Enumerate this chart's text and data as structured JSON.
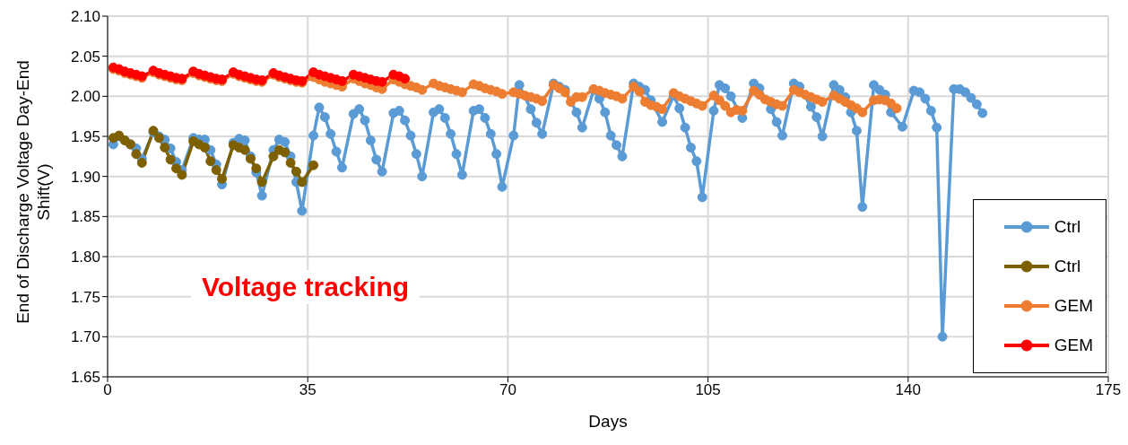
{
  "chart_data": {
    "type": "line",
    "xlabel": "Days",
    "ylabel": "End of Discharge Voltage Day-End Shift(V)",
    "annotations": [
      "Voltage tracking"
    ],
    "xlim": [
      0,
      175
    ],
    "xticks": [
      0,
      35,
      70,
      105,
      140,
      175
    ],
    "ylim": [
      1.65,
      2.1
    ],
    "yticks": [
      {
        "value": 1.65,
        "label": "1.65"
      },
      {
        "value": 1.7,
        "label": "1.70"
      },
      {
        "value": 1.75,
        "label": "1.75"
      },
      {
        "value": 1.8,
        "label": "1.80"
      },
      {
        "value": 1.85,
        "label": "1.85"
      },
      {
        "value": 1.9,
        "label": "1.90"
      },
      {
        "value": 1.95,
        "label": "1.95"
      },
      {
        "value": 2.0,
        "label": "2.00"
      },
      {
        "value": 2.05,
        "label": "2.05"
      },
      {
        "value": 2.1,
        "label": "2.10"
      }
    ],
    "grid": true,
    "legend": "bottom right",
    "marker": "circle",
    "line_style": "solid",
    "series": [
      {
        "name": "Ctrl",
        "color": "#5b9bd5",
        "x": [
          1,
          2,
          3,
          4,
          5,
          6,
          8,
          9,
          10,
          11,
          12,
          13,
          15,
          16,
          17,
          18,
          19,
          20,
          22,
          23,
          24,
          25,
          26,
          27,
          29,
          30,
          31,
          32,
          33,
          34,
          36,
          37,
          38,
          39,
          40,
          41,
          43,
          44,
          45,
          46,
          47,
          48,
          50,
          51,
          52,
          53,
          54,
          55,
          57,
          58,
          59,
          60,
          61,
          62,
          64,
          65,
          66,
          67,
          68,
          69,
          71,
          72,
          74,
          75,
          76,
          78,
          79,
          80,
          82,
          83,
          85,
          86,
          87,
          88,
          89,
          90,
          92,
          93,
          94,
          95,
          97,
          99,
          100,
          101,
          102,
          103,
          104,
          106,
          107,
          108,
          109,
          111,
          113,
          114,
          116,
          117,
          118,
          120,
          121,
          123,
          124,
          125,
          127,
          128,
          129,
          130,
          131,
          132,
          134,
          135,
          136,
          137,
          139,
          141,
          142,
          143,
          144,
          145,
          146,
          148,
          149,
          150,
          151,
          152,
          153
        ],
        "values": [
          1.94,
          1.95,
          1.945,
          1.94,
          1.935,
          1.922,
          1.955,
          1.95,
          1.946,
          1.935,
          1.918,
          1.908,
          1.948,
          1.946,
          1.946,
          1.933,
          1.915,
          1.89,
          1.942,
          1.947,
          1.945,
          1.925,
          1.905,
          1.876,
          1.933,
          1.946,
          1.943,
          1.925,
          1.893,
          1.857,
          1.951,
          1.986,
          1.974,
          1.953,
          1.931,
          1.911,
          1.978,
          1.984,
          1.97,
          1.945,
          1.921,
          1.906,
          1.979,
          1.982,
          1.97,
          1.951,
          1.928,
          1.9,
          1.98,
          1.984,
          1.973,
          1.953,
          1.928,
          1.902,
          1.982,
          1.984,
          1.973,
          1.953,
          1.928,
          1.887,
          1.951,
          2.014,
          1.984,
          1.967,
          1.953,
          2.016,
          2.012,
          2.008,
          1.98,
          1.961,
          2.008,
          1.997,
          1.98,
          1.951,
          1.939,
          1.925,
          2.016,
          2.012,
          2.008,
          1.995,
          1.968,
          2.001,
          1.985,
          1.961,
          1.936,
          1.919,
          1.874,
          1.982,
          2.014,
          2.01,
          2.0,
          1.973,
          2.016,
          2.01,
          1.984,
          1.968,
          1.951,
          2.016,
          2.012,
          1.987,
          1.974,
          1.95,
          2.014,
          2.008,
          1.999,
          1.98,
          1.957,
          1.862,
          2.014,
          2.008,
          2.002,
          1.98,
          1.962,
          2.007,
          2.005,
          1.997,
          1.982,
          1.961,
          1.7,
          2.009,
          2.009,
          2.005,
          1.998,
          1.99,
          1.979
        ]
      },
      {
        "name": "Ctrl",
        "color": "#7f6000",
        "x": [
          1,
          2,
          3,
          4,
          5,
          6,
          8,
          9,
          10,
          11,
          12,
          13,
          15,
          16,
          17,
          18,
          19,
          20,
          22,
          23,
          24,
          25,
          26,
          27,
          29,
          30,
          31,
          32,
          33,
          34,
          36
        ],
        "values": [
          1.948,
          1.951,
          1.945,
          1.94,
          1.928,
          1.917,
          1.957,
          1.948,
          1.936,
          1.921,
          1.91,
          1.902,
          1.944,
          1.94,
          1.936,
          1.919,
          1.908,
          1.897,
          1.939,
          1.936,
          1.933,
          1.922,
          1.91,
          1.893,
          1.925,
          1.933,
          1.93,
          1.917,
          1.906,
          1.893,
          1.914
        ]
      },
      {
        "name": "GEM",
        "color": "#ed7d31",
        "x": [
          1,
          2,
          3,
          4,
          5,
          6,
          8,
          9,
          10,
          11,
          12,
          13,
          15,
          16,
          17,
          18,
          19,
          20,
          22,
          23,
          24,
          25,
          26,
          27,
          29,
          30,
          31,
          32,
          33,
          34,
          36,
          37,
          38,
          39,
          40,
          41,
          43,
          44,
          45,
          46,
          47,
          48,
          50,
          51,
          52,
          53,
          54,
          55,
          57,
          58,
          59,
          60,
          61,
          62,
          64,
          65,
          66,
          67,
          68,
          69,
          71,
          72,
          73,
          74,
          75,
          76,
          78,
          79,
          80,
          81,
          82,
          83,
          85,
          86,
          87,
          88,
          89,
          90,
          92,
          93,
          94,
          95,
          96,
          97,
          99,
          100,
          101,
          102,
          103,
          104,
          106,
          107,
          108,
          109,
          110,
          111,
          113,
          114,
          115,
          116,
          117,
          118,
          120,
          121,
          122,
          123,
          124,
          125,
          127,
          128,
          129,
          130,
          131,
          132,
          134,
          135,
          136,
          137,
          138
        ],
        "values": [
          2.034,
          2.032,
          2.029,
          2.027,
          2.025,
          2.023,
          2.03,
          2.027,
          2.025,
          2.023,
          2.021,
          2.02,
          2.029,
          2.026,
          2.024,
          2.022,
          2.02,
          2.019,
          2.028,
          2.025,
          2.023,
          2.021,
          2.019,
          2.018,
          2.027,
          2.024,
          2.022,
          2.02,
          2.018,
          2.017,
          2.024,
          2.021,
          2.018,
          2.016,
          2.014,
          2.012,
          2.022,
          2.019,
          2.016,
          2.014,
          2.011,
          2.009,
          2.021,
          2.018,
          2.015,
          2.013,
          2.011,
          2.008,
          2.016,
          2.013,
          2.011,
          2.009,
          2.007,
          2.005,
          2.015,
          2.013,
          2.01,
          2.008,
          2.006,
          2.003,
          2.005,
          2.003,
          2.001,
          1.999,
          1.997,
          1.994,
          2.014,
          2.01,
          2.005,
          1.993,
          1.999,
          1.999,
          2.009,
          2.007,
          2.004,
          2.002,
          2.0,
          1.997,
          2.012,
          2.006,
          1.993,
          1.989,
          1.987,
          1.984,
          2.004,
          2.0,
          1.997,
          1.994,
          1.991,
          1.988,
          2.001,
          1.995,
          1.988,
          1.98,
          1.983,
          1.982,
          2.007,
          2.002,
          1.996,
          1.993,
          1.99,
          1.988,
          2.008,
          2.005,
          2.002,
          1.999,
          1.996,
          1.993,
          2.001,
          1.997,
          1.993,
          1.989,
          1.985,
          1.98,
          1.995,
          1.996,
          1.995,
          1.991,
          1.985
        ]
      },
      {
        "name": "GEM",
        "color": "#ff0000",
        "x": [
          1,
          2,
          3,
          4,
          5,
          6,
          8,
          9,
          10,
          11,
          12,
          13,
          15,
          16,
          17,
          18,
          19,
          20,
          22,
          23,
          24,
          25,
          26,
          27,
          29,
          30,
          31,
          32,
          33,
          34,
          36,
          37,
          38,
          39,
          40,
          41,
          43,
          44,
          45,
          46,
          47,
          48,
          50,
          51,
          52
        ],
        "values": [
          2.036,
          2.034,
          2.031,
          2.029,
          2.027,
          2.025,
          2.032,
          2.029,
          2.027,
          2.025,
          2.023,
          2.022,
          2.031,
          2.028,
          2.026,
          2.024,
          2.022,
          2.021,
          2.03,
          2.027,
          2.025,
          2.023,
          2.021,
          2.02,
          2.029,
          2.026,
          2.024,
          2.022,
          2.02,
          2.019,
          2.03,
          2.027,
          2.025,
          2.023,
          2.021,
          2.019,
          2.027,
          2.025,
          2.023,
          2.021,
          2.019,
          2.018,
          2.027,
          2.025,
          2.022
        ]
      }
    ]
  }
}
